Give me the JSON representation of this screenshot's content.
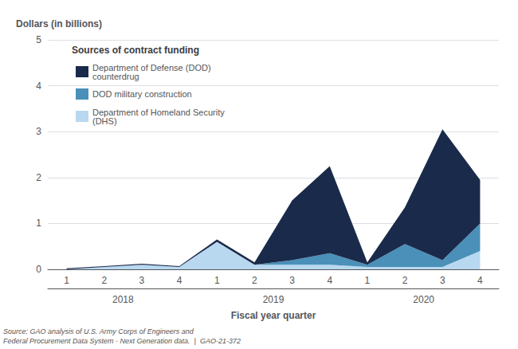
{
  "chart_data": {
    "type": "area",
    "stacked": true,
    "categories": [
      "1",
      "2",
      "3",
      "4",
      "1",
      "2",
      "3",
      "4",
      "1",
      "2",
      "3",
      "4"
    ],
    "annotations": [
      "2018",
      "2019",
      "2020"
    ],
    "series": [
      {
        "name": "Department of Homeland Security\n(DHS)",
        "color": "#b8d8f0",
        "values": [
          0.0,
          0.05,
          0.1,
          0.05,
          0.6,
          0.1,
          0.1,
          0.1,
          0.05,
          0.05,
          0.05,
          0.4
        ]
      },
      {
        "name": "DOD military construction",
        "color": "#4a90b8",
        "values": [
          0.0,
          0.0,
          0.0,
          0.0,
          0.0,
          0.0,
          0.1,
          0.25,
          0.05,
          0.5,
          0.15,
          0.6
        ]
      },
      {
        "name": "Department of Defense (DOD)\ncounterdrug",
        "color": "#1a2a4a",
        "values": [
          0.02,
          0.02,
          0.02,
          0.02,
          0.05,
          0.05,
          1.3,
          1.9,
          0.05,
          0.8,
          2.85,
          0.95
        ]
      }
    ],
    "legend_title": "Sources of contract funding",
    "ylabel": "Dollars (in billions)",
    "xlabel": "Fiscal year quarter",
    "source": "Source: GAO analysis of U.S. Army Corps of Engineers and\nFederal Procurement Data System - Next Generation data.  |  GAO-21-372",
    "ylim": [
      0,
      5
    ],
    "yticks": [
      0,
      1,
      2,
      3,
      4,
      5
    ],
    "grid": true,
    "legend": "upper left"
  }
}
